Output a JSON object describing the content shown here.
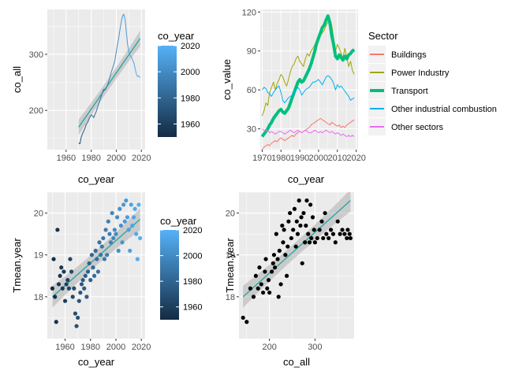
{
  "chart_data": [
    {
      "type": "line",
      "xlabel": "co_year",
      "ylabel": "co_all",
      "xlim": [
        1945,
        2023
      ],
      "ylim": [
        130,
        380
      ],
      "xticks": [
        1960,
        1980,
        2000,
        2020
      ],
      "yticks": [
        200,
        300
      ],
      "xtick_labels": [
        "1960",
        "1980",
        "2000",
        "2020"
      ],
      "ytick_labels": [
        "200",
        "300"
      ],
      "series_color_by": "co_year",
      "x": [
        1970,
        1971,
        1972,
        1973,
        1974,
        1975,
        1976,
        1977,
        1978,
        1979,
        1980,
        1981,
        1982,
        1983,
        1984,
        1985,
        1986,
        1987,
        1988,
        1989,
        1990,
        1991,
        1992,
        1993,
        1994,
        1995,
        1996,
        1997,
        1998,
        1999,
        2000,
        2001,
        2002,
        2003,
        2004,
        2005,
        2006,
        2007,
        2008,
        2009,
        2010,
        2011,
        2012,
        2013,
        2014,
        2015,
        2016,
        2017,
        2018,
        2019
      ],
      "y": [
        142,
        140,
        152,
        158,
        163,
        168,
        175,
        178,
        183,
        188,
        192,
        190,
        187,
        193,
        198,
        205,
        212,
        218,
        225,
        232,
        238,
        236,
        240,
        245,
        252,
        260,
        268,
        275,
        282,
        290,
        305,
        318,
        330,
        345,
        358,
        368,
        372,
        362,
        340,
        318,
        305,
        298,
        295,
        290,
        285,
        275,
        265,
        260,
        262,
        258
      ],
      "trend": {
        "x": [
          1970,
          2019
        ],
        "y": [
          170,
          328
        ]
      },
      "legend": {
        "title": "co_year",
        "labels": [
          "2020",
          "2000",
          "1980",
          "1960"
        ],
        "values": [
          2020,
          2000,
          1980,
          1960
        ],
        "range": [
          1950,
          2020
        ],
        "colors": {
          "low": "#132b43",
          "high": "#56b1f7"
        }
      }
    },
    {
      "type": "line",
      "xlabel": "co_year",
      "ylabel": "co_value",
      "xlim": [
        1969,
        2021
      ],
      "ylim": [
        14,
        122
      ],
      "xticks": [
        1970,
        1980,
        1990,
        2000,
        2010,
        2020
      ],
      "yticks": [
        30,
        60,
        90,
        120
      ],
      "xtick_labels": [
        "1970",
        "1980",
        "1990",
        "2000",
        "2010",
        "2020"
      ],
      "ytick_labels": [
        "30",
        "60",
        "90",
        "120"
      ],
      "x": [
        1970,
        1971,
        1972,
        1973,
        1974,
        1975,
        1976,
        1977,
        1978,
        1979,
        1980,
        1981,
        1982,
        1983,
        1984,
        1985,
        1986,
        1987,
        1988,
        1989,
        1990,
        1991,
        1992,
        1993,
        1994,
        1995,
        1996,
        1997,
        1998,
        1999,
        2000,
        2001,
        2002,
        2003,
        2004,
        2005,
        2006,
        2007,
        2008,
        2009,
        2010,
        2011,
        2012,
        2013,
        2014,
        2015,
        2016,
        2017,
        2018,
        2019
      ],
      "series": [
        {
          "name": "Buildings",
          "color": "#f8766d",
          "width": 1,
          "values": [
            14,
            16,
            17,
            18,
            17,
            19,
            20,
            21,
            20,
            22,
            23,
            22,
            21,
            22,
            23,
            24,
            25,
            24,
            26,
            27,
            28,
            27,
            28,
            29,
            30,
            31,
            33,
            34,
            35,
            36,
            37,
            38,
            37,
            36,
            35,
            34,
            33,
            35,
            34,
            33,
            32,
            33,
            31,
            32,
            31,
            33,
            34,
            35,
            36,
            37
          ]
        },
        {
          "name": "Power Industry",
          "color": "#a3a500",
          "width": 1,
          "values": [
            40,
            44,
            50,
            48,
            58,
            62,
            66,
            60,
            65,
            68,
            72,
            70,
            66,
            63,
            68,
            74,
            78,
            80,
            84,
            86,
            82,
            80,
            78,
            84,
            88,
            86,
            90,
            92,
            95,
            98,
            100,
            102,
            104,
            106,
            110,
            112,
            115,
            110,
            100,
            90,
            95,
            92,
            88,
            85,
            92,
            85,
            78,
            82,
            75,
            72
          ]
        },
        {
          "name": "Transport",
          "color": "#00bf7d",
          "width": 4,
          "values": [
            24,
            26,
            28,
            30,
            33,
            35,
            38,
            40,
            42,
            44,
            45,
            43,
            42,
            44,
            46,
            50,
            54,
            58,
            62,
            66,
            68,
            66,
            67,
            70,
            73,
            76,
            80,
            85,
            90,
            96,
            100,
            104,
            108,
            110,
            114,
            117,
            112,
            102,
            95,
            86,
            84,
            87,
            85,
            83,
            86,
            84,
            87,
            88,
            90,
            91
          ]
        },
        {
          "name": "Other industrial combustion",
          "color": "#00b0f6",
          "width": 1,
          "values": [
            60,
            62,
            61,
            58,
            57,
            55,
            58,
            60,
            62,
            63,
            58,
            52,
            50,
            52,
            54,
            55,
            56,
            58,
            60,
            62,
            60,
            56,
            58,
            60,
            61,
            62,
            64,
            66,
            66,
            67,
            68,
            66,
            64,
            67,
            70,
            71,
            70,
            68,
            65,
            60,
            64,
            62,
            63,
            61,
            59,
            57,
            55,
            52,
            53,
            54
          ]
        },
        {
          "name": "Other sectors",
          "color": "#e76bf3",
          "width": 1,
          "values": [
            30,
            29,
            28,
            29,
            27,
            28,
            27,
            26,
            27,
            28,
            28,
            27,
            26,
            27,
            28,
            29,
            28,
            27,
            28,
            29,
            28,
            27,
            28,
            29,
            28,
            27,
            27,
            28,
            29,
            28,
            27,
            28,
            27,
            28,
            29,
            28,
            27,
            28,
            27,
            26,
            27,
            26,
            25,
            26,
            25,
            24,
            25,
            24,
            25,
            24
          ]
        }
      ],
      "legend": {
        "title": "Sector"
      }
    },
    {
      "type": "scatter",
      "xlabel": "co_year",
      "ylabel": "Tmean.year",
      "xlim": [
        1946,
        2023
      ],
      "ylim": [
        17.0,
        20.5
      ],
      "xticks": [
        1960,
        1980,
        2000,
        2020
      ],
      "yticks": [
        18,
        19,
        20
      ],
      "xtick_labels": [
        "1960",
        "1980",
        "2000",
        "2020"
      ],
      "ytick_labels": [
        "18",
        "19",
        "20"
      ],
      "series_color_by": "co_year",
      "x": [
        1950,
        1951,
        1952,
        1953,
        1954,
        1955,
        1956,
        1957,
        1958,
        1959,
        1960,
        1961,
        1962,
        1963,
        1964,
        1965,
        1966,
        1967,
        1968,
        1969,
        1970,
        1971,
        1972,
        1973,
        1974,
        1975,
        1976,
        1977,
        1978,
        1979,
        1980,
        1981,
        1982,
        1983,
        1984,
        1985,
        1986,
        1987,
        1988,
        1989,
        1990,
        1991,
        1992,
        1993,
        1994,
        1995,
        1996,
        1997,
        1998,
        1999,
        2000,
        2001,
        2002,
        2003,
        2004,
        2005,
        2006,
        2007,
        2008,
        2009,
        2010,
        2011,
        2012,
        2013,
        2014,
        2015,
        2016,
        2017,
        2018,
        2019
      ],
      "y": [
        18.2,
        18.9,
        18.0,
        17.4,
        19.6,
        18.3,
        18.5,
        18.7,
        18.2,
        18.6,
        17.9,
        18.3,
        18.4,
        18.2,
        18.9,
        18.6,
        18.0,
        18.2,
        17.6,
        17.3,
        17.5,
        17.9,
        18.1,
        18.3,
        18.4,
        18.2,
        18.5,
        18.0,
        18.6,
        18.8,
        18.4,
        19.0,
        18.7,
        18.5,
        19.1,
        18.9,
        18.6,
        19.3,
        19.0,
        19.2,
        19.4,
        18.9,
        19.6,
        19.0,
        19.8,
        19.5,
        19.3,
        20.0,
        19.4,
        19.6,
        19.5,
        19.9,
        19.1,
        20.1,
        19.7,
        19.3,
        20.2,
        19.8,
        20.3,
        19.9,
        19.6,
        19.1,
        20.2,
        19.7,
        19.9,
        20.1,
        19.5,
        18.9,
        20.2,
        19.4
      ],
      "trend": {
        "x": [
          1950,
          2019
        ],
        "y": [
          18.0,
          19.85
        ]
      },
      "legend": {
        "title": "co_year",
        "labels": [
          "2020",
          "2000",
          "1980",
          "1960"
        ],
        "values": [
          2020,
          2000,
          1980,
          1960
        ],
        "range": [
          1950,
          2020
        ],
        "colors": {
          "low": "#132b43",
          "high": "#56b1f7"
        }
      }
    },
    {
      "type": "scatter",
      "xlabel": "co_all",
      "ylabel": "Tmean.year",
      "xlim": [
        133,
        386
      ],
      "ylim": [
        17.0,
        20.5
      ],
      "xticks": [
        200,
        300
      ],
      "yticks": [
        18,
        19,
        20
      ],
      "xtick_labels": [
        "200",
        "300"
      ],
      "ytick_labels": [
        "18",
        "19",
        "20"
      ],
      "point_color": "#000000",
      "x": [
        142,
        150,
        158,
        165,
        170,
        175,
        178,
        182,
        186,
        190,
        192,
        195,
        198,
        200,
        205,
        208,
        210,
        212,
        215,
        218,
        220,
        222,
        225,
        228,
        230,
        232,
        235,
        238,
        240,
        242,
        245,
        248,
        252,
        255,
        258,
        260,
        262,
        265,
        268,
        270,
        272,
        275,
        278,
        280,
        282,
        285,
        288,
        290,
        292,
        295,
        298,
        300,
        305,
        310,
        315,
        318,
        322,
        325,
        330,
        335,
        340,
        345,
        350,
        355,
        360,
        365,
        370,
        372,
        376,
        378
      ],
      "y": [
        17.5,
        17.4,
        18.2,
        18.0,
        18.5,
        18.2,
        18.7,
        18.3,
        18.1,
        18.6,
        18.9,
        18.2,
        18.4,
        18.1,
        18.6,
        18.8,
        19.0,
        18.7,
        19.5,
        18.9,
        18.0,
        19.1,
        18.3,
        19.7,
        19.3,
        19.6,
        19.0,
        18.5,
        19.2,
        19.8,
        20.0,
        19.4,
        19.6,
        20.1,
        19.2,
        19.8,
        19.5,
        20.3,
        19.7,
        19.9,
        18.8,
        20.0,
        19.3,
        19.7,
        20.3,
        19.5,
        19.3,
        20.2,
        19.4,
        19.9,
        19.6,
        19.3,
        19.4,
        19.6,
        19.8,
        19.4,
        20.0,
        19.5,
        19.4,
        19.6,
        19.5,
        19.3,
        19.8,
        19.5,
        19.6,
        19.5,
        19.4,
        19.6,
        19.5,
        19.4
      ],
      "trend": {
        "x": [
          142,
          378
        ],
        "y": [
          18.0,
          20.3
        ]
      }
    }
  ]
}
